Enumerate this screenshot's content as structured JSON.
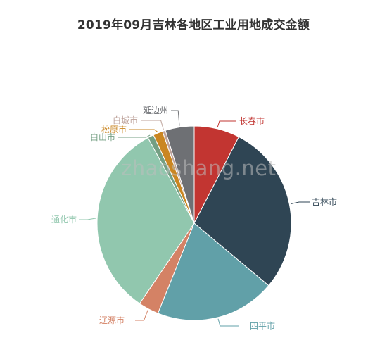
{
  "chart_data": {
    "type": "pie",
    "title": "2019年09月吉林各地区工业用地成交金额",
    "watermark": "zhaoshang.net",
    "slices": [
      {
        "name": "长春市",
        "value": 7.6,
        "color": "#c23531"
      },
      {
        "name": "吉林市",
        "value": 28.5,
        "color": "#2f4554"
      },
      {
        "name": "四平市",
        "value": 20.0,
        "color": "#61a0a8"
      },
      {
        "name": "辽源市",
        "value": 3.4,
        "color": "#d48265"
      },
      {
        "name": "通化市",
        "value": 32.6,
        "color": "#91c7ae"
      },
      {
        "name": "白山市",
        "value": 1.0,
        "color": "#749f83"
      },
      {
        "name": "松原市",
        "value": 1.6,
        "color": "#ca8622"
      },
      {
        "name": "白城市",
        "value": 0.5,
        "color": "#bda29a"
      },
      {
        "name": "延边州",
        "value": 4.8,
        "color": "#6e7074"
      }
    ],
    "legend": "none",
    "start_angle": "12-o'clock",
    "direction": "clockwise"
  }
}
